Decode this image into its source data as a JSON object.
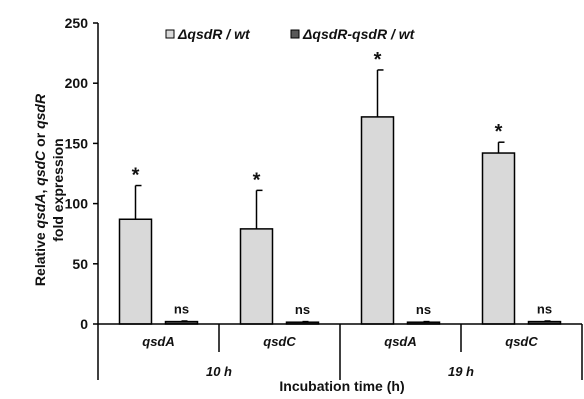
{
  "chart_data": {
    "type": "bar",
    "ylabel": {
      "parts": [
        {
          "text": "Relative ",
          "italic": false
        },
        {
          "text": "qsdA",
          "italic": true
        },
        {
          "text": ", ",
          "italic": false
        },
        {
          "text": "qsdC",
          "italic": true
        },
        {
          "text": " or ",
          "italic": false
        },
        {
          "text": "qsdR",
          "italic": true
        }
      ],
      "line2": "fold expression"
    },
    "xlabel": "Incubation time (h)",
    "ylim": [
      0,
      250
    ],
    "yticks": [
      "0",
      "50",
      "100",
      "150",
      "200",
      "250"
    ],
    "categories": [
      "qsdA",
      "qsdC",
      "qsdA",
      "qsdC"
    ],
    "groups": [
      {
        "label": "10 h",
        "categories": [
          0,
          1
        ]
      },
      {
        "label": "19 h",
        "categories": [
          2,
          3
        ]
      }
    ],
    "legend_position": "top",
    "series": [
      {
        "name": "ΔqsdR / wt",
        "color": "#d9d9d9",
        "values": [
          87,
          79,
          172,
          142
        ],
        "errors": [
          28,
          32,
          39,
          9
        ],
        "annotations": [
          "*",
          "*",
          "*",
          "*"
        ]
      },
      {
        "name": "ΔqsdR-qsdR / wt",
        "color": "#595959",
        "values": [
          2,
          1.5,
          1.5,
          2
        ],
        "errors": [
          0.5,
          0.5,
          0.5,
          0.5
        ],
        "annotations": [
          "ns",
          "ns",
          "ns",
          "ns"
        ]
      }
    ]
  }
}
